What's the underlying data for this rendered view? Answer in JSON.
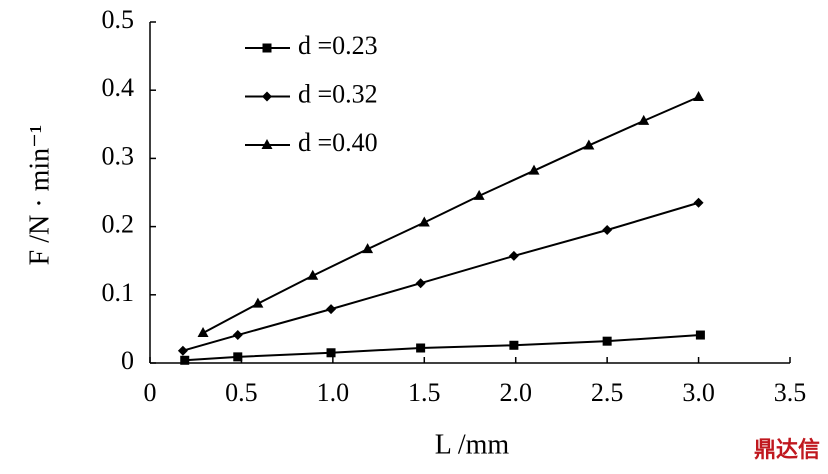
{
  "chart_data": {
    "type": "line",
    "xlabel": "L /mm",
    "ylabel": "F /N · min⁻¹",
    "watermark": "鼎达信",
    "xlim": [
      0,
      3.5
    ],
    "ylim": [
      0,
      0.5
    ],
    "xticks": [
      0,
      0.5,
      {
        "value": 1,
        "label": "1.0"
      },
      1.5,
      {
        "value": 2,
        "label": "2.0"
      },
      2.5,
      {
        "value": 3,
        "label": "3.0"
      },
      3.5
    ],
    "yticks": [
      0,
      0.1,
      0.2,
      0.3,
      0.4,
      0.5
    ],
    "legend": "upper left",
    "series": [
      {
        "name": "d =0.23",
        "color": "#000000",
        "marker": "square",
        "x": [
          0.19,
          0.48,
          0.99,
          1.48,
          1.99,
          2.5,
          3.01
        ],
        "values": [
          0.004,
          0.009,
          0.015,
          0.022,
          0.026,
          0.032,
          0.041
        ]
      },
      {
        "name": "d =0.32",
        "color": "#000000",
        "marker": "diamond",
        "x": [
          0.18,
          0.48,
          0.99,
          1.48,
          1.99,
          2.5,
          3.0
        ],
        "values": [
          0.018,
          0.041,
          0.079,
          0.117,
          0.157,
          0.195,
          0.235
        ]
      },
      {
        "name": "d =0.40",
        "color": "#000000",
        "marker": "triangle",
        "x": [
          0.29,
          0.59,
          0.89,
          1.19,
          1.5,
          1.8,
          2.1,
          2.4,
          2.7,
          3.0
        ],
        "values": [
          0.044,
          0.087,
          0.128,
          0.167,
          0.206,
          0.245,
          0.282,
          0.319,
          0.355,
          0.39
        ]
      }
    ]
  }
}
